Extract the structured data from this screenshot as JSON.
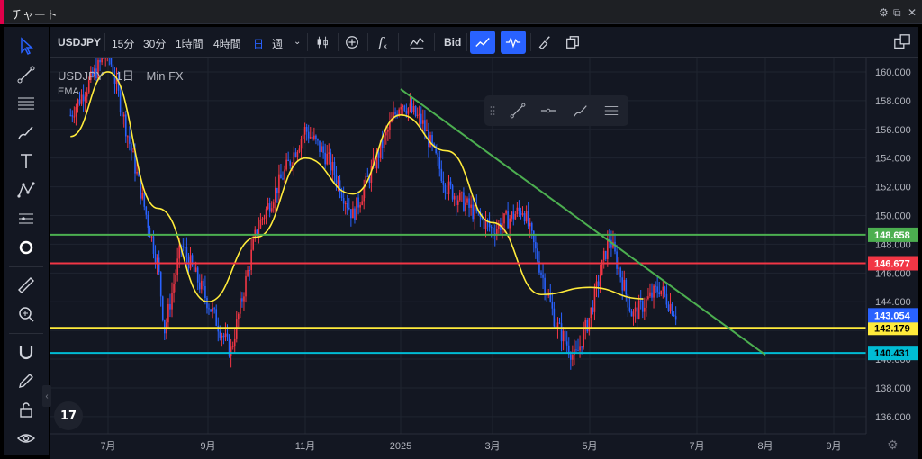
{
  "window": {
    "title": "チャート"
  },
  "toolbar": {
    "symbol": "USDJPY",
    "intervals": [
      "15分",
      "30分",
      "1時間",
      "4時間",
      "日",
      "週"
    ],
    "active_interval": "日",
    "price_type": "Bid"
  },
  "legend": {
    "symbol": "USDJPY",
    "interval": "1日",
    "source": "Min FX",
    "indicator": "EMA"
  },
  "logo": {
    "text": "17"
  },
  "chart_data": {
    "type": "candlestick",
    "x_axis_labels": [
      "7月",
      "9月",
      "11月",
      "2025",
      "3月",
      "5月",
      "7月",
      "8月",
      "9月"
    ],
    "y_axis_labels": [
      160,
      158,
      156,
      154,
      152,
      150,
      148,
      146,
      144,
      140,
      138,
      136
    ],
    "ylim": [
      134.8,
      161.0
    ],
    "grid": true,
    "approx_close_path": [
      [
        "2024-06",
        157.0
      ],
      [
        "2024-07",
        161.5
      ],
      [
        "2024-08",
        146.5
      ],
      [
        "2024-08-05",
        142.0
      ],
      [
        "2024-08-15",
        148.0
      ],
      [
        "2024-09-15",
        140.5
      ],
      [
        "2024-10",
        149.0
      ],
      [
        "2024-11",
        156.0
      ],
      [
        "2024-11-15",
        154.0
      ],
      [
        "2024-12",
        150.0
      ],
      [
        "2025-01",
        158.0
      ],
      [
        "2025-01-15",
        156.5
      ],
      [
        "2025-02",
        152.0
      ],
      [
        "2025-03",
        149.0
      ],
      [
        "2025-03-20",
        150.5
      ],
      [
        "2025-04-10",
        142.5
      ],
      [
        "2025-04-22",
        140.0
      ],
      [
        "2025-05-01",
        143.0
      ],
      [
        "2025-05-12",
        148.5
      ],
      [
        "2025-05-25",
        143.0
      ],
      [
        "2025-06-10",
        145.0
      ],
      [
        "2025-06-20",
        143.054
      ]
    ],
    "ema_path": [
      [
        "2024-06",
        155.5
      ],
      [
        "2024-07",
        160.0
      ],
      [
        "2024-08",
        150.5
      ],
      [
        "2024-09",
        144.0
      ],
      [
        "2024-10",
        148.5
      ],
      [
        "2024-11",
        154.0
      ],
      [
        "2024-12",
        151.5
      ],
      [
        "2025-01",
        157.0
      ],
      [
        "2025-02",
        154.5
      ],
      [
        "2025-03",
        149.5
      ],
      [
        "2025-04",
        144.5
      ],
      [
        "2025-05",
        145.0
      ],
      [
        "2025-06",
        144.2
      ]
    ],
    "horizontal_lines": [
      {
        "price": 148.658,
        "label": "148.658",
        "color": "#4caf50"
      },
      {
        "price": 146.677,
        "label": "146.677",
        "color": "#f23645"
      },
      {
        "price": 142.179,
        "label": "142.179",
        "color": "#ffeb3b"
      },
      {
        "price": 140.431,
        "label": "140.431",
        "color": "#00bcd4"
      }
    ],
    "trendline": {
      "from": [
        "2025-01",
        158.8
      ],
      "to": [
        "2025-08",
        140.3
      ],
      "color": "#4caf50"
    },
    "current_price": {
      "price": 143.054,
      "label": "143.054",
      "color": "#2962ff"
    },
    "colors": {
      "up": "#f23645",
      "down": "#2962ff",
      "ema": "#ffeb3b",
      "background": "#131722"
    }
  }
}
